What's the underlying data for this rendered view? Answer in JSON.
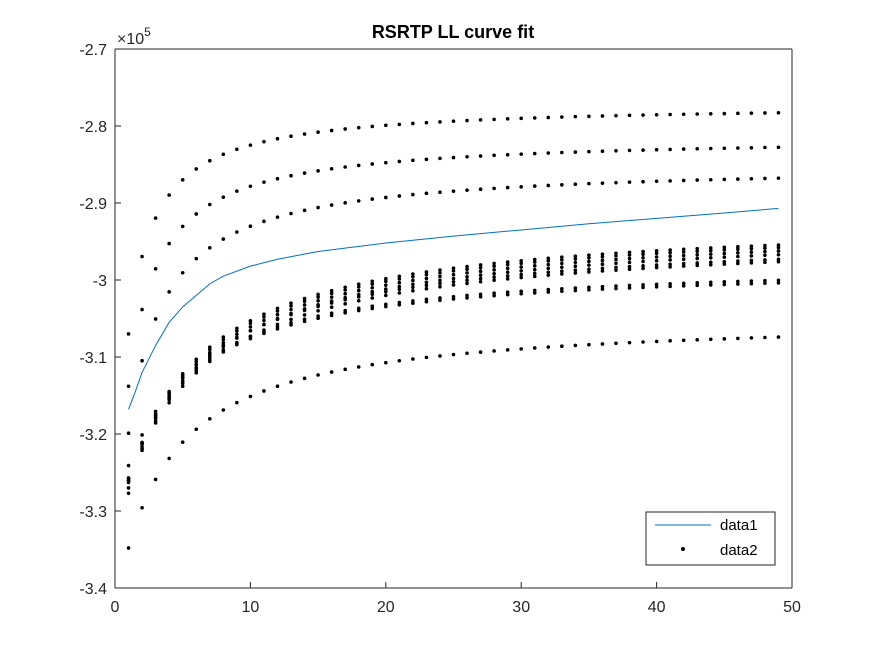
{
  "chart_data": {
    "type": "scatter",
    "title": "RSRTP LL curve fit",
    "xlabel": "",
    "ylabel": "",
    "xlim": [
      0,
      50
    ],
    "ylim": [
      -3.4,
      -2.7
    ],
    "y_exponent_label": "×10",
    "y_exponent_power": "5",
    "xticks": [
      0,
      10,
      20,
      30,
      40,
      50
    ],
    "xtick_labels": [
      "0",
      "10",
      "20",
      "30",
      "40",
      "50"
    ],
    "yticks": [
      -3.4,
      -3.3,
      -3.2,
      -3.1,
      -3.0,
      -2.9,
      -2.8,
      -2.7
    ],
    "ytick_labels": [
      "-3.4",
      "-3.3",
      "-3.2",
      "-3.1",
      "-3",
      "-2.9",
      "-2.8",
      "-2.7"
    ],
    "grid": false,
    "legend_position": "bottom-right",
    "colors": {
      "data1": "#0072BD",
      "data2": "#000000",
      "axes": "#262626"
    },
    "series": [
      {
        "name": "data1",
        "kind": "line",
        "x": [
          1,
          1.5,
          2,
          3,
          4,
          5,
          6,
          7,
          8,
          10,
          12,
          15,
          20,
          25,
          30,
          35,
          40,
          45,
          49
        ],
        "y": [
          -3.168,
          -3.145,
          -3.12,
          -3.085,
          -3.055,
          -3.035,
          -3.02,
          -3.005,
          -2.995,
          -2.982,
          -2.973,
          -2.963,
          -2.952,
          -2.943,
          -2.935,
          -2.927,
          -2.92,
          -2.913,
          -2.907
        ]
      },
      {
        "name": "data2",
        "kind": "scatter",
        "curves": [
          {
            "a": -3.07,
            "b": -0.253,
            "c": -2.771
          },
          {
            "a": -3.138,
            "b": -0.221,
            "c": -2.813
          },
          {
            "a": -3.199,
            "b": -0.184,
            "c": -2.849
          },
          {
            "a": -3.261,
            "b": -0.085,
            "c": -2.917
          },
          {
            "a": -3.26,
            "b": -0.083,
            "c": -2.92
          },
          {
            "a": -3.258,
            "b": -0.08,
            "c": -2.924
          },
          {
            "a": -3.257,
            "b": -0.077,
            "c": -2.928
          },
          {
            "a": -3.241,
            "b": -0.075,
            "c": -2.936
          },
          {
            "a": -3.263,
            "b": -0.078,
            "c": -2.938
          },
          {
            "a": -3.27,
            "b": -0.111,
            "c": -2.975
          },
          {
            "a": -3.277,
            "b": -0.115,
            "c": -2.979
          },
          {
            "a": -3.348,
            "b": -0.105,
            "c": -3.047
          }
        ],
        "x_start": 1,
        "x_end": 49,
        "x_step": 1
      }
    ]
  }
}
